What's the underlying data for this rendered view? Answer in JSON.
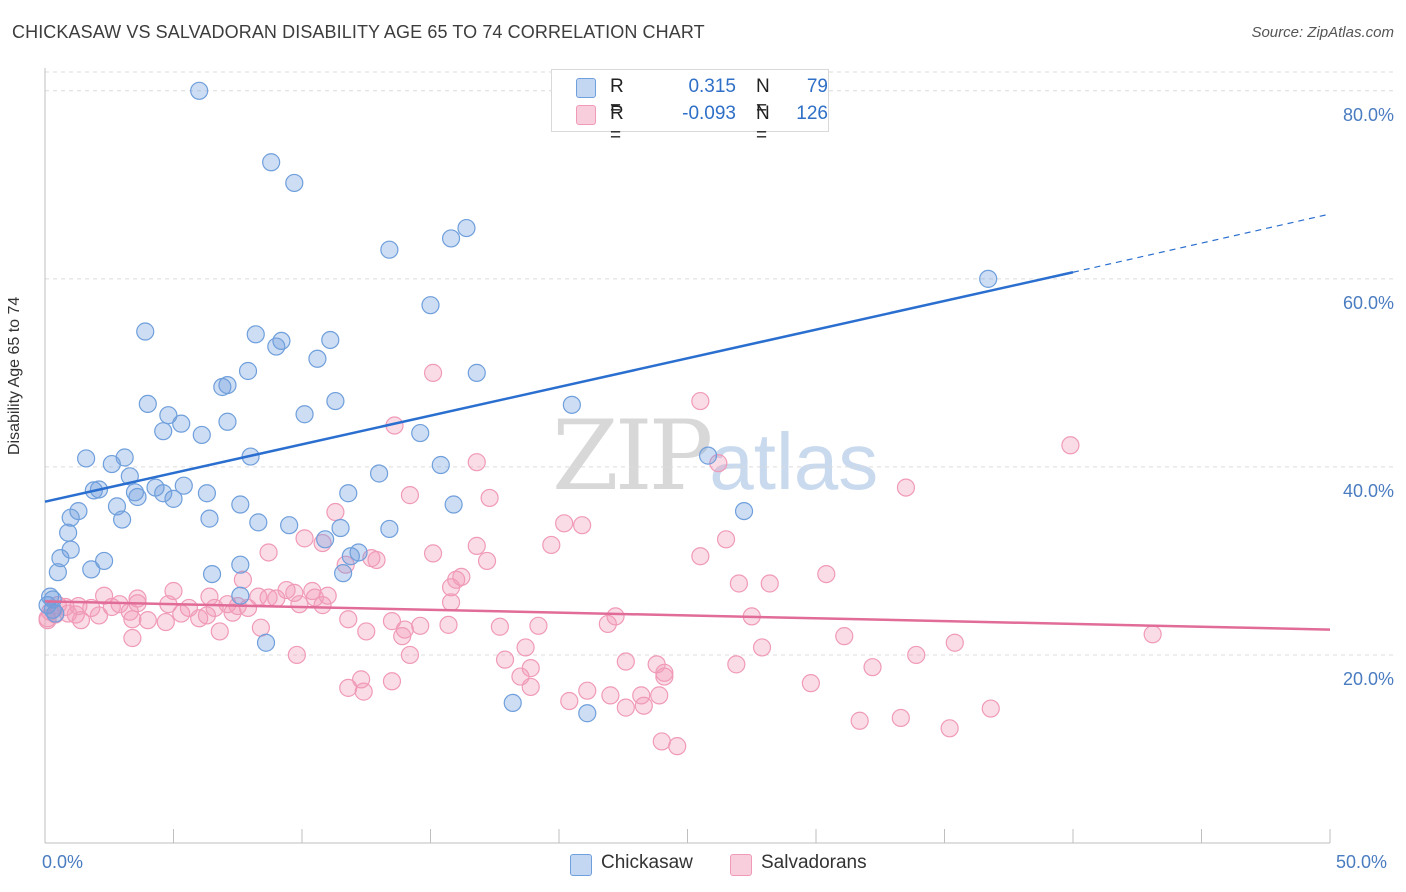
{
  "header": {
    "title": "CHICKASAW VS SALVADORAN DISABILITY AGE 65 TO 74 CORRELATION CHART",
    "source": "Source: ZipAtlas.com"
  },
  "watermark": {
    "zip": "ZIP",
    "atlas": "atlas"
  },
  "legend": {
    "chickasaw": {
      "r_label": "R =",
      "r_value": "0.315",
      "n_label": "N =",
      "n_value": "79"
    },
    "salvadoran": {
      "r_label": "R =",
      "r_value": "-0.093",
      "n_label": "N =",
      "n_value": "126"
    }
  },
  "bottom_legend": {
    "chickasaw": "Chickasaw",
    "salvadoran": "Salvadorans"
  },
  "chart_data": {
    "type": "scatter",
    "title": "CHICKASAW VS SALVADORAN DISABILITY AGE 65 TO 74 CORRELATION CHART",
    "xlabel": "",
    "ylabel": "Disability Age 65 to 74",
    "xlim": [
      0,
      50
    ],
    "ylim": [
      0,
      82
    ],
    "x_tick_labels": [
      "0.0%",
      "50.0%"
    ],
    "y_ticks": [
      20,
      40,
      60,
      80
    ],
    "y_tick_labels": [
      "20.0%",
      "40.0%",
      "60.0%",
      "80.0%"
    ],
    "grid": "horizontal dashed",
    "colors": {
      "chickasaw": "#6f9fdc",
      "chickasaw_line": "#2a6fcf",
      "salvadoran": "#f09ab8",
      "salvadoran_line": "#e06c97"
    },
    "series": [
      {
        "name": "Chickasaw",
        "points": [
          [
            6.0,
            80.0
          ],
          [
            8.8,
            72.4
          ],
          [
            9.7,
            70.2
          ],
          [
            16.4,
            65.4
          ],
          [
            15.8,
            64.3
          ],
          [
            13.4,
            63.1
          ],
          [
            36.7,
            60.0
          ],
          [
            15.0,
            57.2
          ],
          [
            3.9,
            54.4
          ],
          [
            8.2,
            54.1
          ],
          [
            9.2,
            53.4
          ],
          [
            11.1,
            53.5
          ],
          [
            9.0,
            52.8
          ],
          [
            10.6,
            51.5
          ],
          [
            16.8,
            50.0
          ],
          [
            7.9,
            50.2
          ],
          [
            6.9,
            48.5
          ],
          [
            7.1,
            48.7
          ],
          [
            4.0,
            46.7
          ],
          [
            11.3,
            47.0
          ],
          [
            20.5,
            46.6
          ],
          [
            10.1,
            45.6
          ],
          [
            4.8,
            45.5
          ],
          [
            5.3,
            44.6
          ],
          [
            7.1,
            44.8
          ],
          [
            4.6,
            43.8
          ],
          [
            6.1,
            43.4
          ],
          [
            14.6,
            43.6
          ],
          [
            1.6,
            40.9
          ],
          [
            3.1,
            41.0
          ],
          [
            8.0,
            41.1
          ],
          [
            25.8,
            41.2
          ],
          [
            2.6,
            40.3
          ],
          [
            15.4,
            40.2
          ],
          [
            3.3,
            39.0
          ],
          [
            13.0,
            39.3
          ],
          [
            1.9,
            37.5
          ],
          [
            2.1,
            37.6
          ],
          [
            4.3,
            37.8
          ],
          [
            5.4,
            38.0
          ],
          [
            3.5,
            37.3
          ],
          [
            4.6,
            37.2
          ],
          [
            6.3,
            37.2
          ],
          [
            11.8,
            37.2
          ],
          [
            3.6,
            36.8
          ],
          [
            5.0,
            36.6
          ],
          [
            7.6,
            36.0
          ],
          [
            15.9,
            36.0
          ],
          [
            2.8,
            35.8
          ],
          [
            1.3,
            35.3
          ],
          [
            1.0,
            34.6
          ],
          [
            6.4,
            34.5
          ],
          [
            3.0,
            34.4
          ],
          [
            27.2,
            35.3
          ],
          [
            8.3,
            34.1
          ],
          [
            9.5,
            33.8
          ],
          [
            11.5,
            33.5
          ],
          [
            13.4,
            33.4
          ],
          [
            0.9,
            33.0
          ],
          [
            1.0,
            31.2
          ],
          [
            11.9,
            30.5
          ],
          [
            12.2,
            30.9
          ],
          [
            0.6,
            30.3
          ],
          [
            2.3,
            30.0
          ],
          [
            7.6,
            29.6
          ],
          [
            1.8,
            29.1
          ],
          [
            0.5,
            28.8
          ],
          [
            11.6,
            28.7
          ],
          [
            6.5,
            28.6
          ],
          [
            0.2,
            26.2
          ],
          [
            0.3,
            25.9
          ],
          [
            7.6,
            26.3
          ],
          [
            0.1,
            25.3
          ],
          [
            0.3,
            24.8
          ],
          [
            0.4,
            24.4
          ],
          [
            8.6,
            21.3
          ],
          [
            18.2,
            14.9
          ],
          [
            21.1,
            13.8
          ],
          [
            10.9,
            32.3
          ]
        ]
      },
      {
        "name": "Salvadorans",
        "points": [
          [
            15.1,
            50.0
          ],
          [
            25.5,
            47.0
          ],
          [
            13.6,
            44.4
          ],
          [
            39.9,
            42.3
          ],
          [
            16.8,
            40.5
          ],
          [
            26.2,
            40.4
          ],
          [
            33.5,
            37.8
          ],
          [
            14.2,
            37.0
          ],
          [
            17.3,
            36.7
          ],
          [
            11.3,
            35.2
          ],
          [
            20.2,
            34.0
          ],
          [
            20.9,
            33.8
          ],
          [
            26.5,
            32.3
          ],
          [
            10.1,
            32.4
          ],
          [
            10.8,
            31.9
          ],
          [
            19.7,
            31.7
          ],
          [
            16.8,
            31.6
          ],
          [
            8.7,
            30.9
          ],
          [
            15.1,
            30.8
          ],
          [
            25.5,
            30.5
          ],
          [
            12.7,
            30.3
          ],
          [
            12.9,
            30.1
          ],
          [
            17.2,
            30.0
          ],
          [
            11.7,
            29.6
          ],
          [
            30.4,
            28.6
          ],
          [
            16.2,
            28.3
          ],
          [
            16.0,
            28.0
          ],
          [
            7.7,
            28.0
          ],
          [
            15.8,
            27.2
          ],
          [
            27.0,
            27.6
          ],
          [
            28.2,
            27.6
          ],
          [
            5.0,
            26.8
          ],
          [
            9.4,
            26.9
          ],
          [
            9.7,
            26.6
          ],
          [
            10.4,
            26.8
          ],
          [
            2.3,
            26.3
          ],
          [
            3.6,
            26.0
          ],
          [
            6.4,
            26.2
          ],
          [
            8.3,
            26.2
          ],
          [
            8.7,
            26.1
          ],
          [
            9.0,
            26.0
          ],
          [
            10.5,
            26.1
          ],
          [
            11.0,
            26.3
          ],
          [
            15.8,
            25.6
          ],
          [
            0.5,
            25.3
          ],
          [
            0.8,
            25.1
          ],
          [
            1.3,
            25.2
          ],
          [
            1.8,
            25.0
          ],
          [
            2.6,
            25.1
          ],
          [
            2.9,
            25.4
          ],
          [
            3.6,
            25.5
          ],
          [
            4.8,
            25.4
          ],
          [
            5.6,
            25.0
          ],
          [
            6.6,
            25.0
          ],
          [
            7.1,
            25.4
          ],
          [
            7.5,
            25.2
          ],
          [
            7.9,
            25.0
          ],
          [
            9.9,
            25.4
          ],
          [
            10.8,
            25.3
          ],
          [
            0.2,
            24.6
          ],
          [
            0.4,
            24.3
          ],
          [
            0.9,
            24.4
          ],
          [
            1.2,
            24.3
          ],
          [
            2.1,
            24.2
          ],
          [
            3.3,
            24.6
          ],
          [
            5.3,
            24.4
          ],
          [
            6.3,
            24.2
          ],
          [
            7.3,
            24.5
          ],
          [
            22.2,
            24.1
          ],
          [
            27.5,
            24.1
          ],
          [
            0.1,
            23.9
          ],
          [
            0.1,
            23.7
          ],
          [
            1.4,
            23.7
          ],
          [
            3.4,
            23.8
          ],
          [
            4.0,
            23.7
          ],
          [
            4.7,
            23.5
          ],
          [
            6.0,
            23.9
          ],
          [
            11.8,
            23.8
          ],
          [
            13.5,
            23.6
          ],
          [
            14.6,
            23.1
          ],
          [
            15.7,
            23.2
          ],
          [
            17.7,
            23.0
          ],
          [
            19.2,
            23.1
          ],
          [
            21.9,
            23.3
          ],
          [
            12.5,
            22.5
          ],
          [
            14.0,
            22.7
          ],
          [
            8.4,
            22.9
          ],
          [
            6.8,
            22.5
          ],
          [
            3.4,
            21.8
          ],
          [
            13.9,
            22.0
          ],
          [
            31.1,
            22.0
          ],
          [
            43.1,
            22.2
          ],
          [
            18.7,
            20.8
          ],
          [
            27.9,
            20.8
          ],
          [
            35.4,
            21.3
          ],
          [
            9.8,
            20.0
          ],
          [
            14.2,
            20.0
          ],
          [
            33.9,
            20.0
          ],
          [
            17.9,
            19.5
          ],
          [
            22.6,
            19.3
          ],
          [
            23.8,
            19.0
          ],
          [
            24.1,
            18.1
          ],
          [
            26.9,
            19.0
          ],
          [
            32.2,
            18.7
          ],
          [
            18.9,
            18.6
          ],
          [
            12.3,
            17.4
          ],
          [
            18.5,
            17.7
          ],
          [
            24.1,
            17.7
          ],
          [
            29.8,
            17.0
          ],
          [
            18.9,
            16.6
          ],
          [
            21.1,
            16.2
          ],
          [
            23.2,
            15.7
          ],
          [
            11.8,
            16.5
          ],
          [
            13.5,
            17.2
          ],
          [
            12.4,
            16.1
          ],
          [
            22.0,
            15.7
          ],
          [
            20.4,
            15.1
          ],
          [
            23.9,
            15.7
          ],
          [
            23.3,
            14.6
          ],
          [
            35.2,
            12.2
          ],
          [
            31.7,
            13.0
          ],
          [
            36.8,
            14.3
          ],
          [
            33.3,
            13.3
          ],
          [
            24.0,
            10.8
          ],
          [
            24.6,
            10.3
          ],
          [
            22.6,
            14.4
          ]
        ]
      }
    ],
    "trend_lines": [
      {
        "series": "Chickasaw",
        "x": [
          0,
          40
        ],
        "y": [
          36.3,
          60.7
        ],
        "dashed_extension_to": [
          50,
          66.9
        ]
      },
      {
        "series": "Salvadorans",
        "x": [
          0,
          50
        ],
        "y": [
          25.7,
          22.7
        ]
      }
    ]
  }
}
